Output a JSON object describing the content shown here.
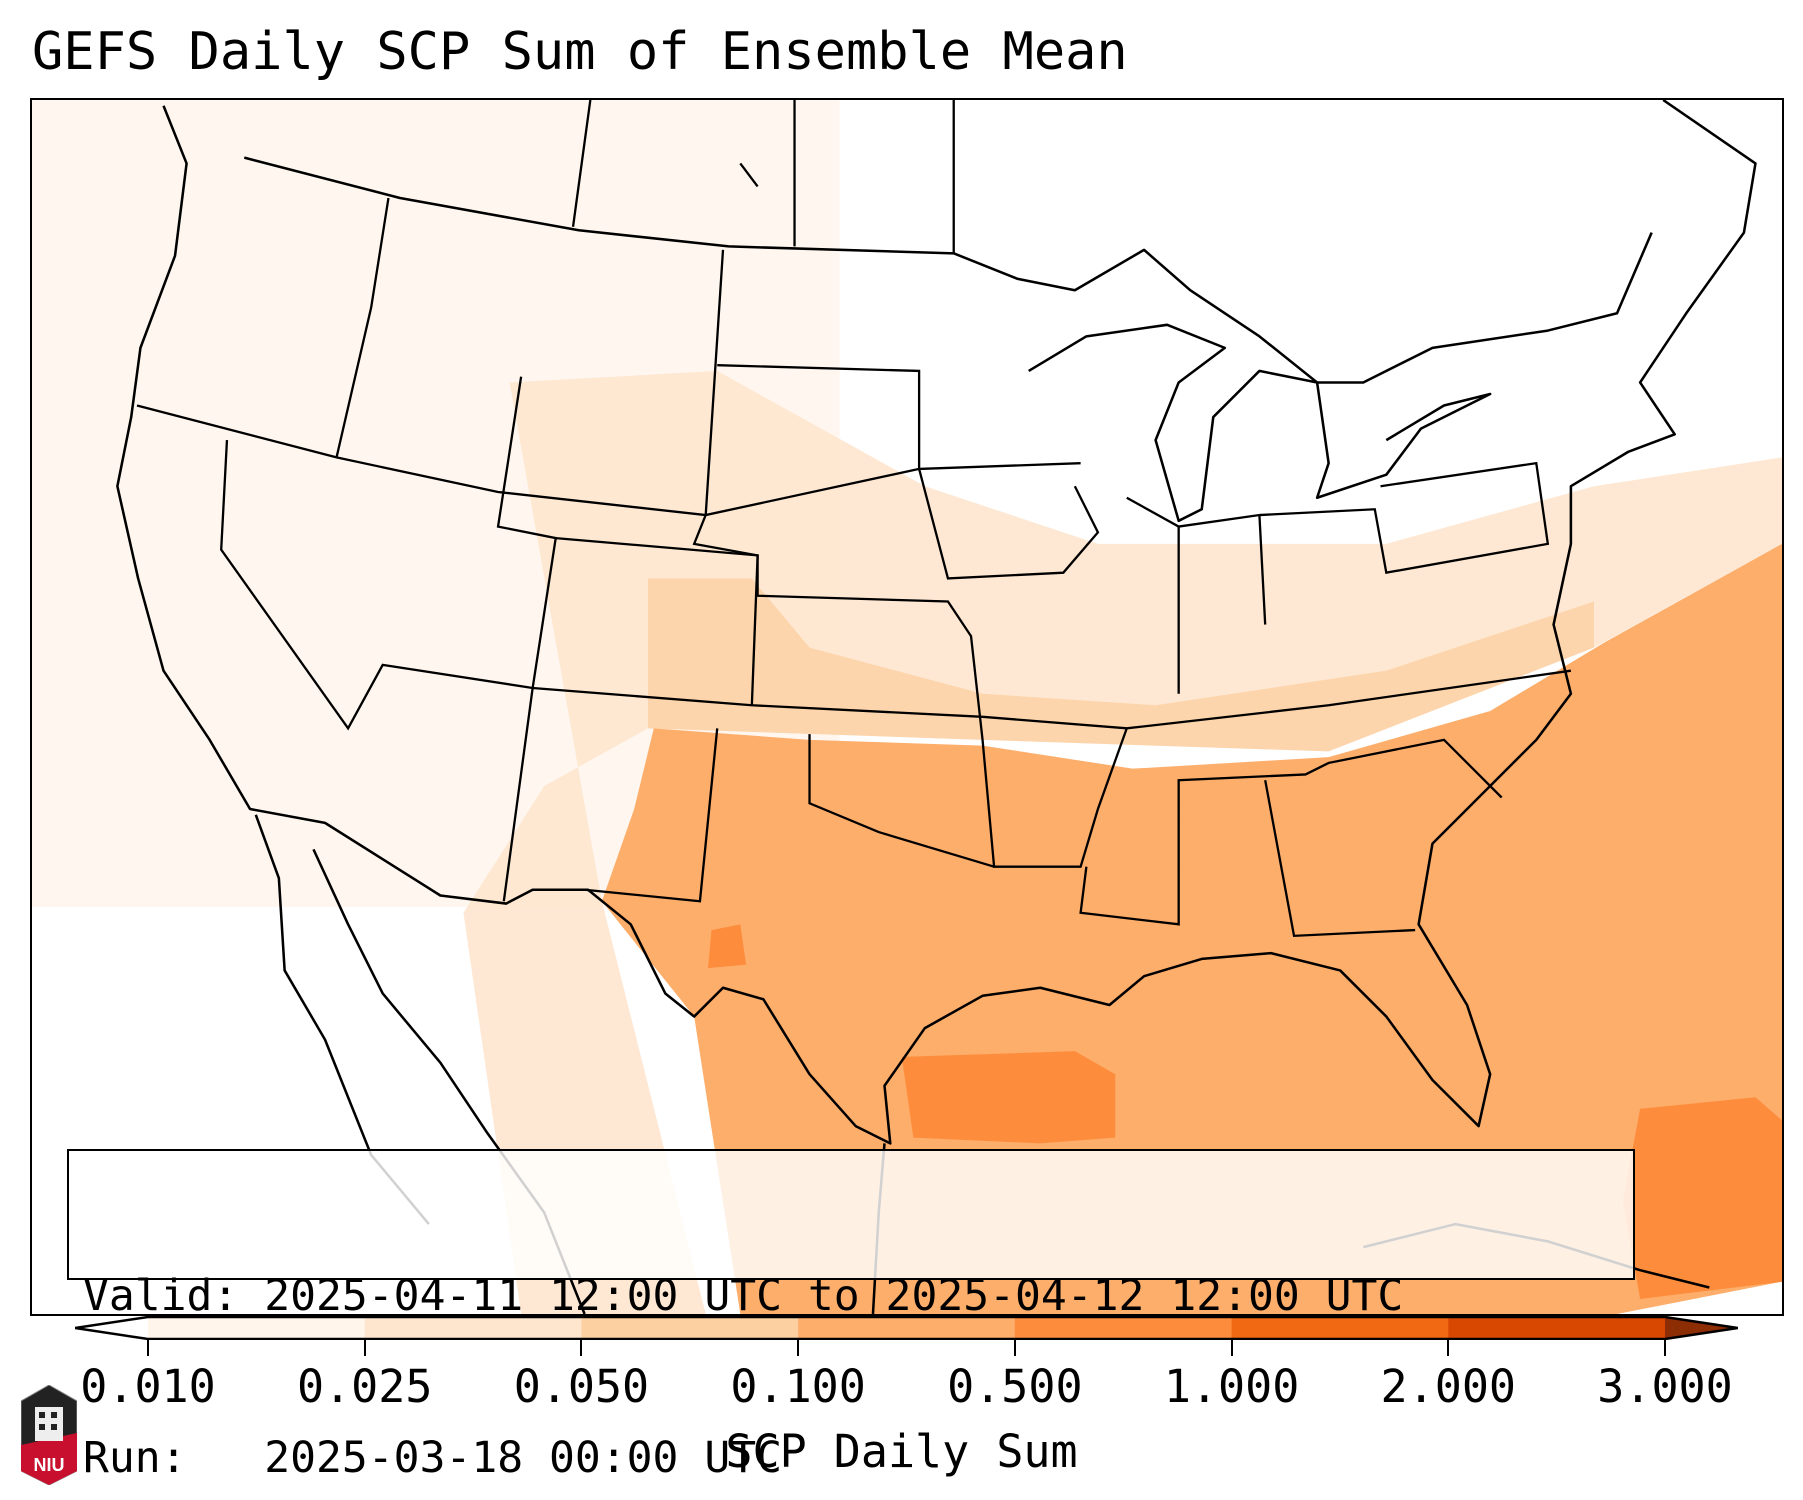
{
  "title": "GEFS Daily SCP Sum of Ensemble Mean",
  "info": {
    "valid_label": "Valid:",
    "valid_value": "2025-04-11 12:00 UTC to 2025-04-12 12:00 UTC",
    "run_label": "Run:",
    "run_value": "2025-03-18 00:00 UTC"
  },
  "colorbar": {
    "label": "SCP Daily Sum",
    "ticks": [
      "0.010",
      "0.025",
      "0.050",
      "0.100",
      "0.500",
      "1.000",
      "2.000",
      "3.000"
    ],
    "colors": [
      "#fff5eb",
      "#fee6ce",
      "#fdd0a2",
      "#fdae6b",
      "#fd8d3c",
      "#f16913",
      "#d94801"
    ],
    "extend_min_color": "#ffffff",
    "extend_max_color": "#8c2d04"
  },
  "logo": {
    "text": "NIU",
    "color": "#c8102e"
  }
}
